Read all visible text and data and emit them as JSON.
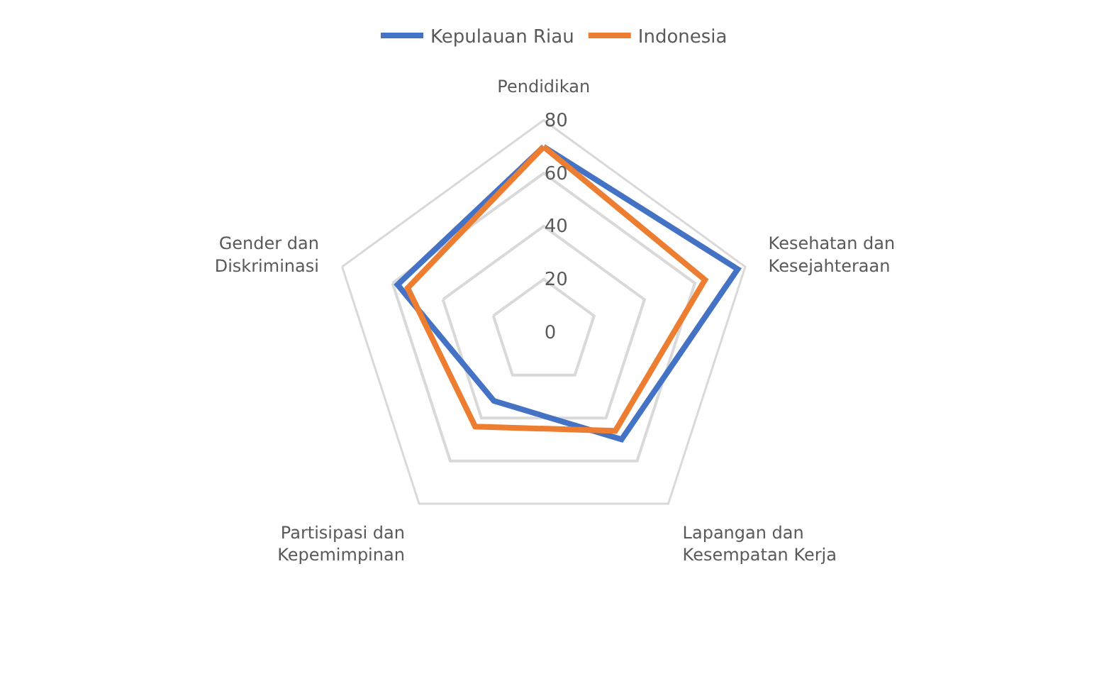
{
  "chart_data": {
    "type": "radar",
    "categories": [
      "Pendidikan",
      "Kesehatan dan\nKesejahteraan",
      "Lapangan dan\nKesempatan Kerja",
      "Partisipasi dan\nKepemimpinan",
      "Gender dan\nDiskriminasi"
    ],
    "series": [
      {
        "name": "Kepulauan Riau",
        "color": "#4472c4",
        "values": [
          70,
          77,
          50,
          32,
          58
        ]
      },
      {
        "name": "Indonesia",
        "color": "#ed7d31",
        "values": [
          70,
          64,
          46,
          44,
          54
        ]
      }
    ],
    "ylim": [
      0,
      80
    ],
    "yticks": [
      0,
      20,
      40,
      60,
      80
    ],
    "grid": true,
    "legend": "top",
    "marker": "none",
    "line_style": "solid"
  }
}
